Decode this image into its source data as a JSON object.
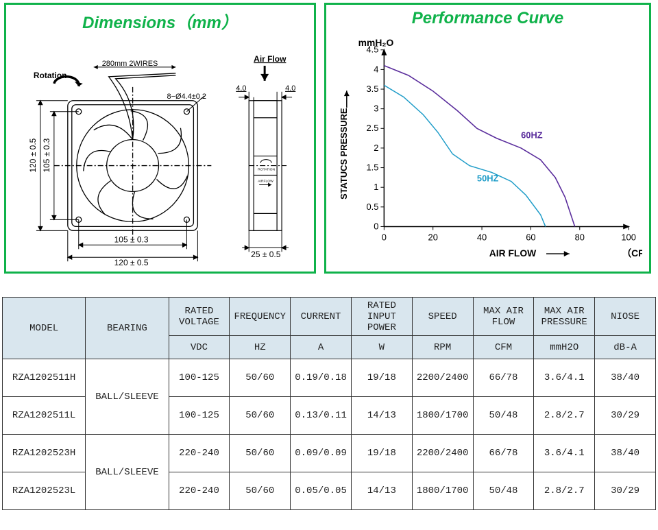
{
  "panels": {
    "dimensions_title": "Dimensions（mm）",
    "performance_title": "Performance  Curve"
  },
  "dimensions": {
    "rotation_label": "Rotation",
    "wire_label": "280mm 2WIRES",
    "airflow_label": "Air Flow",
    "hole_spec": "8−Ø4.4±0.2",
    "dim_120v": "120 ± 0.5",
    "dim_105v": "105 ± 0.3",
    "dim_105h": "105 ± 0.3",
    "dim_120h": "120 ± 0.5",
    "side_4_0a": "4.0",
    "side_4_0b": "4.0",
    "side_25": "25 ± 0.5",
    "side_rotation": "ROTATION",
    "side_airflow": "AIRFLOW"
  },
  "chart": {
    "y_axis_title": "STATUCS  PRESSURE",
    "y_axis_unit": "mmH₂O",
    "x_axis_title": "AIR FLOW",
    "x_axis_unit": "（CFM）",
    "ylim": [
      0,
      4.5
    ],
    "ytick_step": 0.5,
    "yticks": [
      "0",
      "0.5",
      "1",
      "1.5",
      "2",
      "2.5",
      "3",
      "3.5",
      "4",
      "4.5"
    ],
    "xlim": [
      0,
      100
    ],
    "xtick_step": 20,
    "xticks": [
      "0",
      "20",
      "40",
      "60",
      "80",
      "100"
    ],
    "background_color": "#ffffff",
    "axis_color": "#000000",
    "tick_fontsize": 13,
    "label_50hz": "50HZ",
    "label_60hz": "60HZ",
    "series": [
      {
        "name": "50HZ",
        "color": "#1e9cc8",
        "line_width": 1.5,
        "points": [
          [
            0,
            3.6
          ],
          [
            8,
            3.3
          ],
          [
            16,
            2.85
          ],
          [
            22,
            2.4
          ],
          [
            28,
            1.85
          ],
          [
            35,
            1.55
          ],
          [
            44,
            1.38
          ],
          [
            52,
            1.15
          ],
          [
            58,
            0.8
          ],
          [
            64,
            0.3
          ],
          [
            66,
            0
          ]
        ]
      },
      {
        "name": "60HZ",
        "color": "#5a2d9c",
        "line_width": 1.6,
        "points": [
          [
            0,
            4.1
          ],
          [
            10,
            3.85
          ],
          [
            20,
            3.45
          ],
          [
            30,
            2.95
          ],
          [
            38,
            2.5
          ],
          [
            46,
            2.25
          ],
          [
            56,
            2.0
          ],
          [
            64,
            1.7
          ],
          [
            70,
            1.25
          ],
          [
            74,
            0.75
          ],
          [
            78,
            0
          ]
        ]
      }
    ]
  },
  "table": {
    "headers": [
      {
        "label": "MODEL",
        "unit": null
      },
      {
        "label": "BEARING",
        "unit": null
      },
      {
        "label": "RATED VOLTAGE",
        "unit": "VDC"
      },
      {
        "label": "FREQUENCY",
        "unit": "HZ"
      },
      {
        "label": "CURRENT",
        "unit": "A"
      },
      {
        "label": "RATED INPUT POWER",
        "unit": "W"
      },
      {
        "label": "SPEED",
        "unit": "RPM"
      },
      {
        "label": "MAX AIR FLOW",
        "unit": "CFM"
      },
      {
        "label": "MAX AIR PRESSURE",
        "unit": "mmH2O"
      },
      {
        "label": "NIOSE",
        "unit": "dB-A"
      }
    ],
    "bearing_groups": [
      "BALL/SLEEVE",
      "BALL/SLEEVE"
    ],
    "rows": [
      [
        "RZA1202511H",
        "100-125",
        "50/60",
        "0.19/0.18",
        "19/18",
        "2200/2400",
        "66/78",
        "3.6/4.1",
        "38/40"
      ],
      [
        "RZA1202511L",
        "100-125",
        "50/60",
        "0.13/0.11",
        "14/13",
        "1800/1700",
        "50/48",
        "2.8/2.7",
        "30/29"
      ],
      [
        "RZA1202523H",
        "220-240",
        "50/60",
        "0.09/0.09",
        "19/18",
        "2200/2400",
        "66/78",
        "3.6/4.1",
        "38/40"
      ],
      [
        "RZA1202523L",
        "220-240",
        "50/60",
        "0.05/0.05",
        "14/13",
        "1800/1700",
        "50/48",
        "2.8/2.7",
        "30/29"
      ]
    ]
  }
}
